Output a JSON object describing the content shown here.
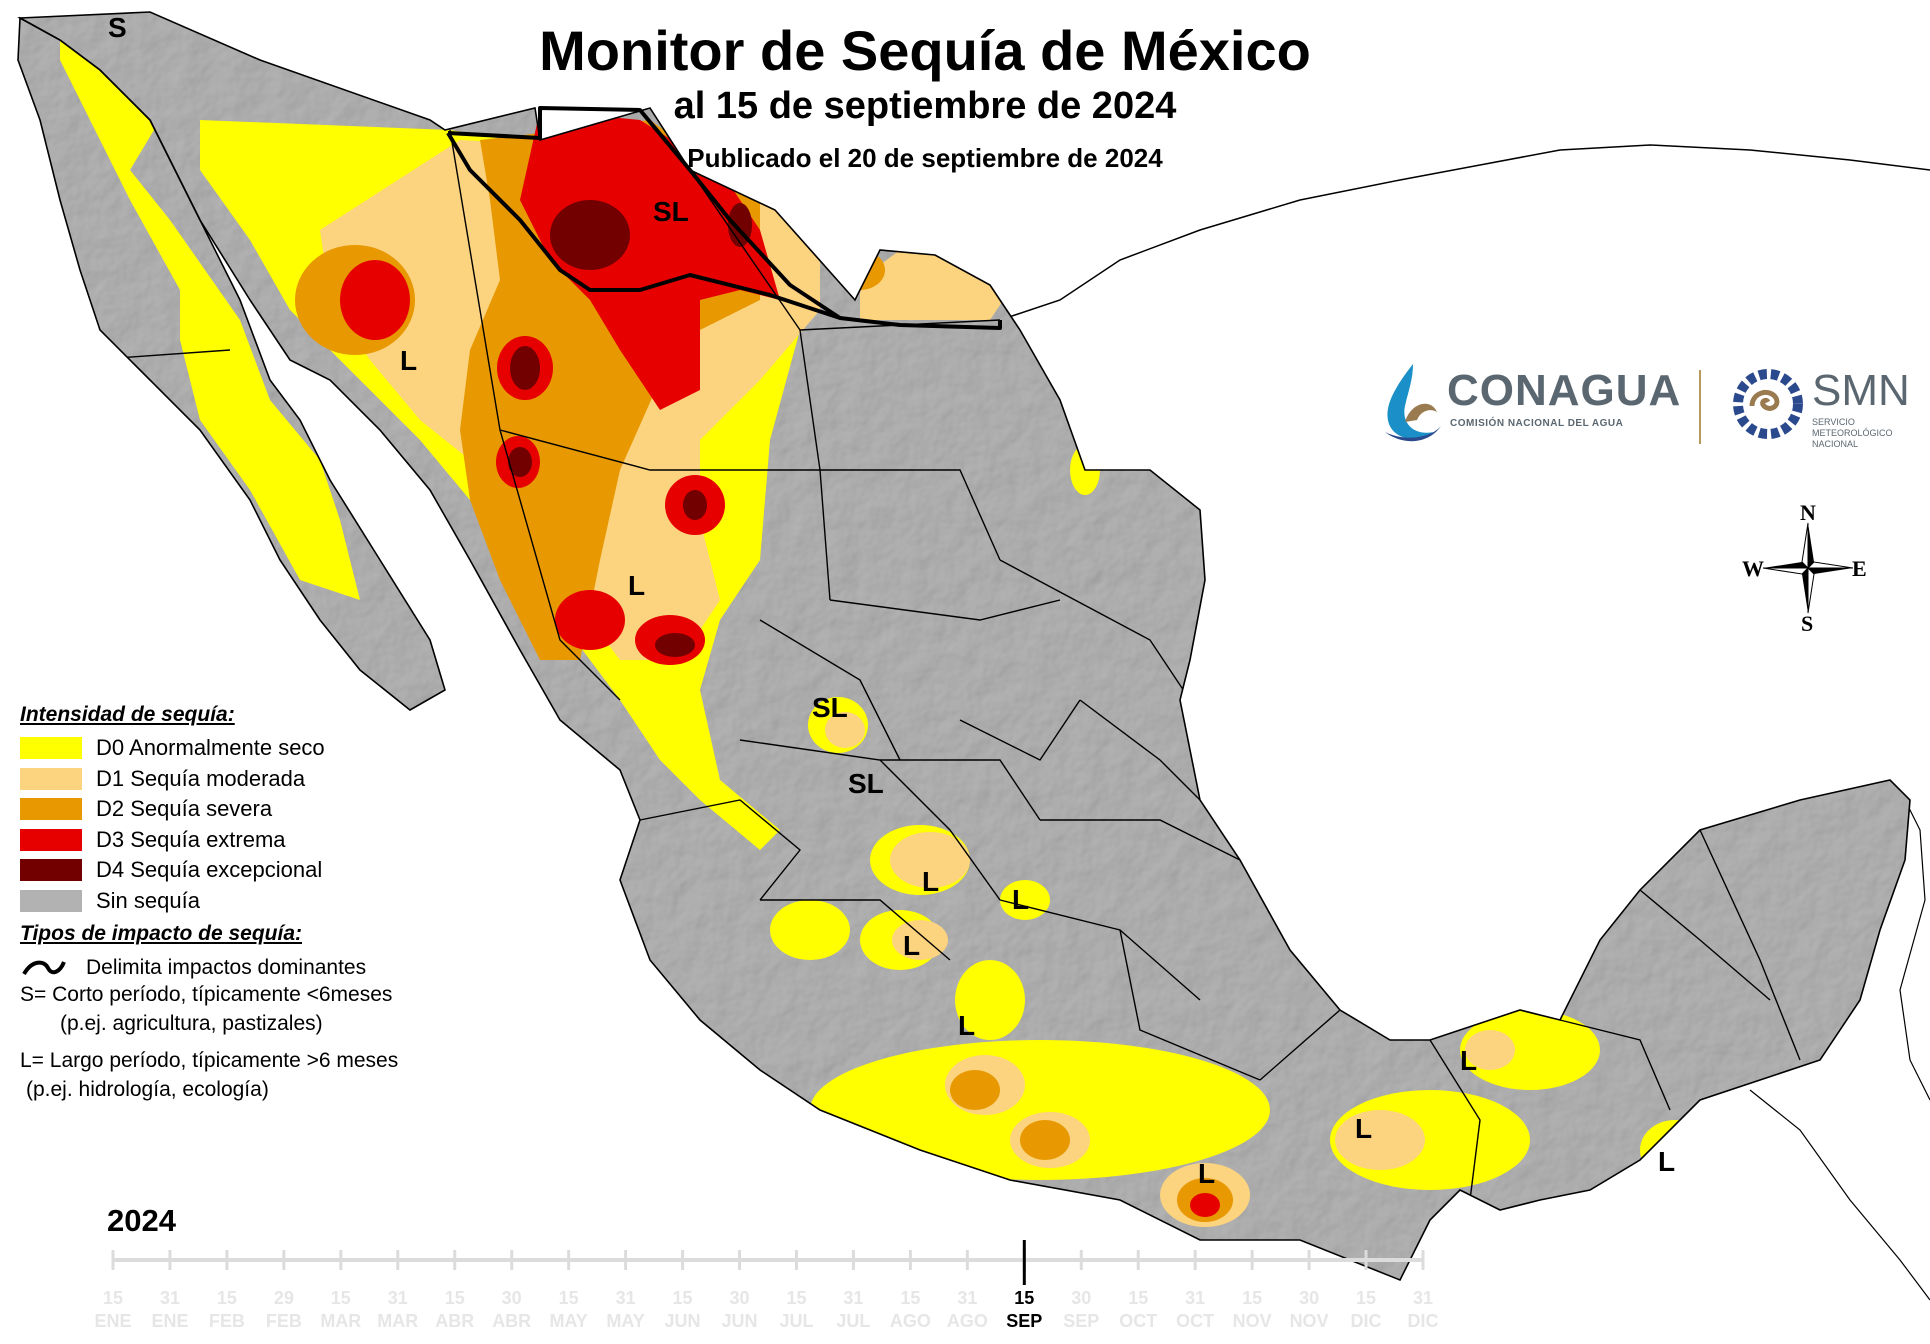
{
  "title": "Monitor de Sequía de México",
  "subtitle": "al 15 de septiembre de 2024",
  "published": "Publicado el 20 de septiembre de 2024",
  "logos": {
    "conagua_name": "CONAGUA",
    "conagua_sub": "COMISIÓN NACIONAL DEL AGUA",
    "smn_name": "SMN",
    "smn_sub": "SERVICIO METEOROLÓGICO NACIONAL"
  },
  "compass": {
    "n": "N",
    "s": "S",
    "e": "E",
    "w": "W"
  },
  "legend": {
    "intensity_title": "Intensidad de sequía:",
    "items": [
      {
        "label": "D0 Anormalmente seco",
        "color": "#ffff00"
      },
      {
        "label": "D1 Sequía moderada",
        "color": "#fcd37f"
      },
      {
        "label": "D2 Sequía severa",
        "color": "#e89800"
      },
      {
        "label": "D3 Sequía extrema",
        "color": "#e60000"
      },
      {
        "label": "D4 Sequía excepcional",
        "color": "#730000"
      },
      {
        "label": "Sin sequía",
        "color": "#b2b2b2"
      }
    ],
    "impact_title": "Tipos de impacto de sequía:",
    "impact_line": "Delimita impactos dominantes",
    "short_term": "S= Corto período, típicamente <6meses",
    "short_term_ex": "(p.ej. agricultura, pastizales)",
    "long_term": "L= Largo período, típicamente >6 meses",
    "long_term_ex": "(p.ej. hidrología, ecología)"
  },
  "map_labels": [
    "S",
    "SL",
    "L",
    "L",
    "SL",
    "SL",
    "L",
    "L",
    "L",
    "L",
    "L",
    "L",
    "L",
    "L"
  ],
  "timeline": {
    "year": "2024",
    "ticks": [
      {
        "day": "15",
        "month": "ENE"
      },
      {
        "day": "31",
        "month": "ENE"
      },
      {
        "day": "15",
        "month": "FEB"
      },
      {
        "day": "29",
        "month": "FEB"
      },
      {
        "day": "15",
        "month": "MAR"
      },
      {
        "day": "31",
        "month": "MAR"
      },
      {
        "day": "15",
        "month": "ABR"
      },
      {
        "day": "30",
        "month": "ABR"
      },
      {
        "day": "15",
        "month": "MAY"
      },
      {
        "day": "31",
        "month": "MAY"
      },
      {
        "day": "15",
        "month": "JUN"
      },
      {
        "day": "30",
        "month": "JUN"
      },
      {
        "day": "15",
        "month": "JUL"
      },
      {
        "day": "31",
        "month": "JUL"
      },
      {
        "day": "15",
        "month": "AGO"
      },
      {
        "day": "31",
        "month": "AGO"
      },
      {
        "day": "15",
        "month": "SEP"
      },
      {
        "day": "30",
        "month": "SEP"
      },
      {
        "day": "15",
        "month": "OCT"
      },
      {
        "day": "31",
        "month": "OCT"
      },
      {
        "day": "15",
        "month": "NOV"
      },
      {
        "day": "30",
        "month": "NOV"
      },
      {
        "day": "15",
        "month": "DIC"
      },
      {
        "day": "31",
        "month": "DIC"
      }
    ],
    "current_index": 16
  }
}
